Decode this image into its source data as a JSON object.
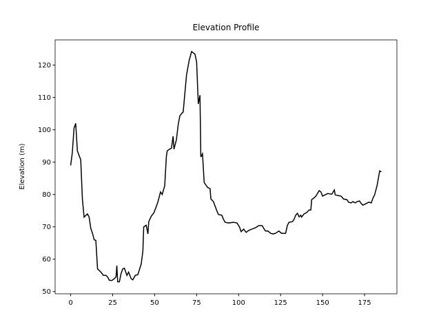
{
  "chart_data": {
    "type": "line",
    "title": "Elevation Profile",
    "ylabel": "Elevation (m)",
    "x": [
      0,
      1,
      2,
      3,
      4,
      6,
      7,
      8,
      10,
      11,
      12,
      13,
      14,
      15,
      16,
      18,
      19.5,
      21,
      22,
      23,
      24.5,
      26,
      27,
      27.5,
      28,
      29,
      30,
      31,
      32,
      33.5,
      34.5,
      36,
      37,
      38.5,
      40,
      42,
      43,
      43.5,
      45,
      46,
      46.5,
      48,
      49.5,
      51,
      52,
      53.5,
      54.5,
      56,
      57,
      57.5,
      58.8,
      60,
      61,
      61.5,
      63,
      64,
      65,
      66.5,
      67,
      68,
      69,
      70.5,
      72,
      74,
      75,
      76,
      77,
      77.5,
      78.5,
      79.5,
      81.5,
      83,
      83.5,
      85,
      87,
      88,
      90,
      91,
      92,
      94,
      97,
      99,
      100.5,
      101.5,
      103,
      104.5,
      106,
      108,
      110,
      112,
      114,
      115,
      116,
      117.5,
      119,
      120.5,
      122,
      124,
      125.5,
      128,
      129,
      130,
      132,
      133,
      134,
      135,
      136,
      137,
      137.5,
      139,
      140.5,
      142,
      143,
      143.5,
      145,
      146,
      148,
      149,
      150,
      151.5,
      153,
      155.5,
      157,
      157.5,
      159,
      161,
      162.5,
      164.5,
      165.5,
      167,
      168,
      169.5,
      170.5,
      172,
      173,
      174,
      176,
      177.5,
      179,
      180,
      181,
      182.5,
      183,
      184,
      185
    ],
    "series": [
      {
        "name": "Elevation",
        "color": "#000000",
        "values": [
          89,
          93,
          100.5,
          102,
          93.5,
          90.7,
          78.5,
          73,
          74,
          73,
          69.5,
          68,
          66,
          65.8,
          57,
          56,
          55,
          55,
          54.5,
          53.5,
          53.4,
          54,
          54.5,
          58,
          53,
          53,
          55.5,
          57,
          57.2,
          55,
          56,
          54,
          53.6,
          55,
          55.2,
          58.5,
          62.5,
          70,
          70.5,
          67.8,
          71.6,
          73.3,
          74.3,
          76.3,
          77.8,
          80.8,
          80,
          82.7,
          91.8,
          93.5,
          94,
          94.3,
          98,
          94,
          97,
          101.5,
          104.3,
          105.3,
          105.5,
          111.3,
          117,
          121.3,
          124.2,
          123.4,
          121,
          108,
          110.7,
          91.6,
          92.6,
          83.7,
          82.2,
          81.8,
          78.6,
          77.8,
          75,
          73.8,
          73.6,
          72.3,
          71.4,
          71.2,
          71.4,
          71.2,
          70,
          68.5,
          69.3,
          68.3,
          68.9,
          69.3,
          69.7,
          70.4,
          70.4,
          69.5,
          68.7,
          68.7,
          68,
          67.8,
          68,
          68.7,
          68,
          68,
          70.4,
          71.4,
          71.6,
          72.3,
          73.6,
          74.2,
          73.1,
          73.6,
          73,
          74,
          74.4,
          75.2,
          75.2,
          78.4,
          79,
          79.5,
          81.2,
          80.8,
          79.5,
          79.9,
          80.3,
          80.1,
          81.4,
          79.9,
          79.7,
          79.5,
          78.6,
          78.4,
          77.6,
          77.4,
          77.8,
          77.4,
          77.8,
          78,
          77.2,
          76.7,
          77.2,
          77.6,
          77.4,
          78.9,
          79.9,
          82.9,
          84.4,
          87.3,
          87
        ]
      }
    ],
    "xlim": [
      -9.25,
      194.25
    ],
    "ylim": [
      49.3,
      127.8
    ],
    "xticks": [
      0,
      25,
      50,
      75,
      100,
      125,
      150,
      175
    ],
    "yticks": [
      50,
      60,
      70,
      80,
      90,
      100,
      110,
      120
    ]
  }
}
